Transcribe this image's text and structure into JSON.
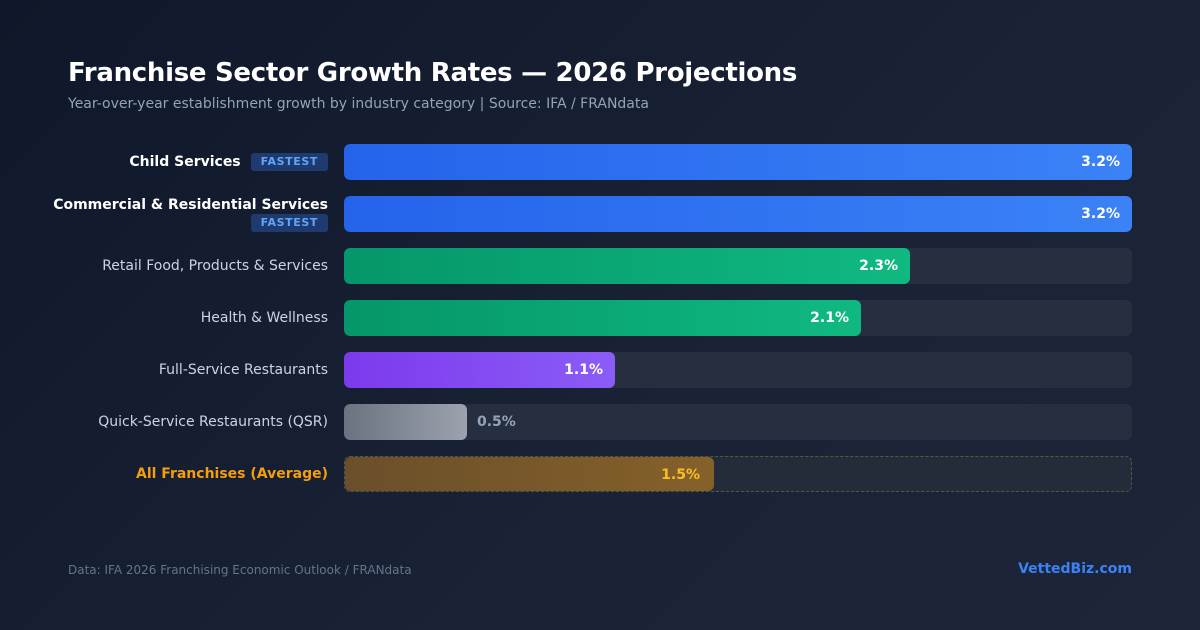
{
  "title": "Franchise Sector Growth Rates — 2026 Projections",
  "subtitle": "Year-over-year establishment growth by industry category | Source: IFA / FRANdata",
  "chart_data": {
    "type": "bar",
    "orientation": "horizontal",
    "title": "Franchise Sector Growth Rates — 2026 Projections",
    "unit": "%",
    "xlim": [
      0,
      3.2
    ],
    "categories": [
      "Child Services",
      "Commercial & Residential Services",
      "Retail Food, Products & Services",
      "Health & Wellness",
      "Full-Service Restaurants",
      "Quick-Service Restaurants (QSR)",
      "All Franchises (Average)"
    ],
    "values": [
      3.2,
      3.2,
      2.3,
      2.1,
      1.1,
      0.5,
      1.5
    ],
    "value_labels": [
      "3.2%",
      "3.2%",
      "2.3%",
      "2.1%",
      "1.1%",
      "0.5%",
      "1.5%"
    ],
    "badges": [
      "FASTEST",
      "FASTEST",
      "",
      "",
      "",
      "",
      ""
    ],
    "colors": [
      "#3b82f6",
      "#3b82f6",
      "#10b981",
      "#10b981",
      "#8b5cf6",
      "#9ca3af",
      "#f59e0b"
    ],
    "average_category": "All Franchises (Average)"
  },
  "footer": {
    "note": "Data: IFA 2026 Franchising Economic Outlook / FRANdata",
    "brand": "VettedBiz.com"
  }
}
